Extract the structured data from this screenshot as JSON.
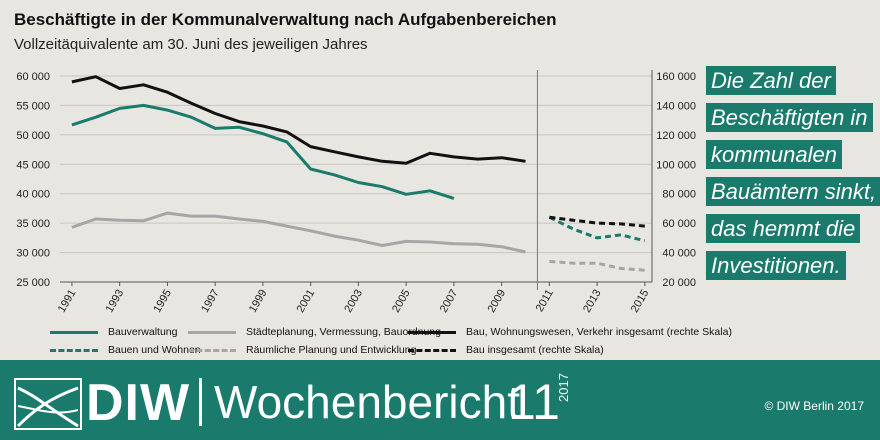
{
  "title": "Beschäftigte in der Kommunalverwaltung nach Aufgabenbereichen",
  "subtitle": "Vollzeitäquivalente am 30. Juni des jeweiligen Jahres",
  "callout_lines": [
    "Die Zahl der",
    "Beschäftigten in",
    "kommunalen",
    "Bauämtern sinkt,",
    "das hemmt die",
    "Investitionen."
  ],
  "footer": {
    "brand": "DIW",
    "publication": "Wochenbericht",
    "issue": "11",
    "year": "2017",
    "copyright": "© DIW Berlin 2017"
  },
  "colors": {
    "teal": "#1a7a6c",
    "gray": "#a6a6a6",
    "black": "#111111"
  },
  "chart_data": {
    "type": "line",
    "title": "Beschäftigte in der Kommunalverwaltung nach Aufgabenbereichen",
    "subtitle": "Vollzeitäquivalente am 30. Juni des jeweiligen Jahres",
    "ylim_left": [
      25000,
      60000
    ],
    "ylim_right": [
      20000,
      160000
    ],
    "left_ticks": [
      "60 000",
      "55 000",
      "50 000",
      "45 000",
      "40 000",
      "35 000",
      "30 000",
      "25 000"
    ],
    "right_ticks": [
      "160 000",
      "140 000",
      "120 000",
      "100 000",
      "80 000",
      "60 000",
      "40 000",
      "20 000"
    ],
    "x_ticks": [
      "1991",
      "1993",
      "1995",
      "1997",
      "1999",
      "2001",
      "2003",
      "2005",
      "2007",
      "2009",
      "2011",
      "2013",
      "2015"
    ],
    "x_break_after": 2010,
    "grid": "horizontal",
    "legend_position": "bottom",
    "series": [
      {
        "name": "Bauverwaltung",
        "axis": "left",
        "style": "solid",
        "color": "#1a7a6c",
        "x": [
          1991,
          1992,
          1993,
          1994,
          1995,
          1996,
          1997,
          1998,
          1999,
          2000,
          2001,
          2002,
          2003,
          2004,
          2005,
          2006,
          2007
        ],
        "y": [
          51700,
          53000,
          54500,
          55000,
          54200,
          53000,
          51100,
          51300,
          50200,
          48800,
          44200,
          43200,
          41900,
          41200,
          39900,
          40500,
          39200
        ]
      },
      {
        "name": "Städteplanung, Vermessung, Bauordnung",
        "axis": "left",
        "style": "solid",
        "color": "#a6a6a6",
        "x": [
          1991,
          1992,
          1993,
          1994,
          1995,
          1996,
          1997,
          1998,
          1999,
          2000,
          2001,
          2002,
          2003,
          2004,
          2005,
          2006,
          2007,
          2008,
          2009,
          2010
        ],
        "y": [
          34300,
          35700,
          35500,
          35400,
          36700,
          36200,
          36200,
          35700,
          35300,
          34500,
          33700,
          32800,
          32100,
          31200,
          31900,
          31800,
          31500,
          31400,
          31000,
          30100
        ]
      },
      {
        "name": "Bau, Wohnungswesen, Verkehr insgesamt (rechte Skala)",
        "axis": "right",
        "style": "solid",
        "color": "#111111",
        "x": [
          1991,
          1992,
          1993,
          1994,
          1995,
          1996,
          1997,
          1998,
          1999,
          2000,
          2001,
          2002,
          2003,
          2004,
          2005,
          2006,
          2007,
          2008,
          2009,
          2010
        ],
        "y": [
          156000,
          159500,
          151500,
          154000,
          149000,
          141500,
          134500,
          129000,
          126000,
          122000,
          112000,
          108500,
          105000,
          102000,
          100700,
          107500,
          105000,
          103500,
          104500,
          102000
        ]
      },
      {
        "name": "Bauen und Wohnen",
        "axis": "left",
        "style": "dashed",
        "color": "#1a7a6c",
        "x": [
          2011,
          2012,
          2013,
          2014,
          2015
        ],
        "y": [
          36000,
          34000,
          32500,
          33000,
          32000
        ]
      },
      {
        "name": "Räumliche Planung und Entwicklung",
        "axis": "left",
        "style": "dashed",
        "color": "#a6a6a6",
        "x": [
          2011,
          2012,
          2013,
          2014,
          2015
        ],
        "y": [
          28500,
          28200,
          28200,
          27300,
          27000
        ]
      },
      {
        "name": "Bau insgesamt (rechte Skala)",
        "axis": "right",
        "style": "dashed",
        "color": "#111111",
        "x": [
          2011,
          2012,
          2013,
          2014,
          2015
        ],
        "y": [
          64000,
          62000,
          60000,
          59500,
          58000
        ]
      }
    ]
  }
}
